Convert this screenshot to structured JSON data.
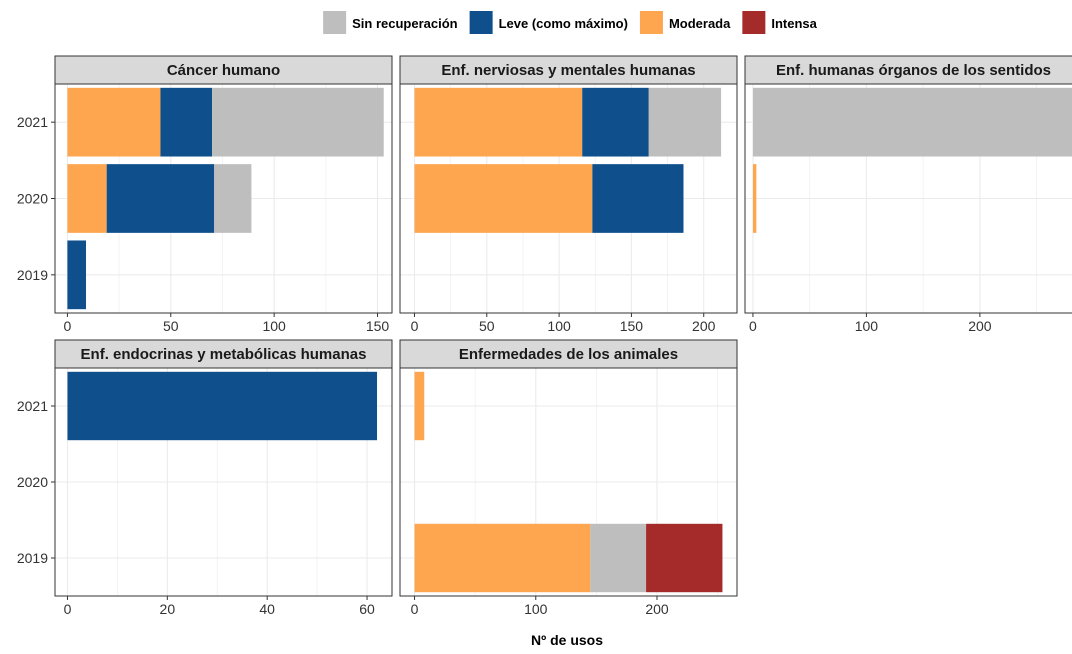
{
  "chart_data": {
    "type": "bar",
    "orientation": "horizontal",
    "stacked": true,
    "xlabel": "Nº de usos",
    "ylabel": "",
    "legend": {
      "placement": "top",
      "entries": [
        {
          "name": "Sin recuperación",
          "color": "#bebebe"
        },
        {
          "name": "Leve (como máximo)",
          "color": "#0f4f8c"
        },
        {
          "name": "Moderada",
          "color": "#fea54f"
        },
        {
          "name": "Intensa",
          "color": "#a52a2a"
        }
      ]
    },
    "categories": [
      "2019",
      "2020",
      "2021"
    ],
    "stack_order": [
      "Moderada",
      "Leve (como máximo)",
      "Sin recuperación",
      "Intensa"
    ],
    "stack_order_note": "",
    "grid": true,
    "facets": [
      {
        "title": "Cáncer humano",
        "xlim": [
          -6,
          157
        ],
        "xticks": [
          0,
          50,
          100,
          150
        ],
        "data": {
          "2021": {
            "Intensa": 0,
            "Moderada": 45,
            "Leve (como máximo)": 25,
            "Sin recuperación": 83
          },
          "2020": {
            "Intensa": 0,
            "Moderada": 19,
            "Leve (como máximo)": 52,
            "Sin recuperación": 18
          },
          "2019": {
            "Intensa": 0,
            "Moderada": 0,
            "Leve (como máximo)": 9,
            "Sin recuperación": 0
          }
        }
      },
      {
        "title": "Enf. nerviosas y mentales humanas",
        "xlim": [
          -10,
          223
        ],
        "xticks": [
          0,
          50,
          100,
          150,
          200
        ],
        "data": {
          "2021": {
            "Intensa": 0,
            "Moderada": 116,
            "Leve (como máximo)": 46,
            "Sin recuperación": 50
          },
          "2020": {
            "Intensa": 0,
            "Moderada": 123,
            "Leve (como máximo)": 63,
            "Sin recuperación": 0
          },
          "2019": {
            "Intensa": 0,
            "Moderada": 0,
            "Leve (como máximo)": 0,
            "Sin recuperación": 0
          }
        }
      },
      {
        "title": "Enf. humanas órganos de los sentidos",
        "xlim": [
          -7,
          290
        ],
        "xticks": [
          0,
          100,
          200
        ],
        "data": {
          "2021": {
            "Intensa": 0,
            "Moderada": 0,
            "Leve (como máximo)": 0,
            "Sin recuperación": 290
          },
          "2020": {
            "Intensa": 0,
            "Moderada": 3,
            "Leve (como máximo)": 0,
            "Sin recuperación": 0
          },
          "2019": {
            "Intensa": 0,
            "Moderada": 0,
            "Leve (como máximo)": 0,
            "Sin recuperación": 0
          }
        }
      },
      {
        "title": "Enf. endocrinas y metabólicas humanas",
        "xlim": [
          -2.5,
          65
        ],
        "xticks": [
          0,
          20,
          40,
          60
        ],
        "data": {
          "2021": {
            "Intensa": 0,
            "Moderada": 0,
            "Leve (como máximo)": 62,
            "Sin recuperación": 0
          },
          "2020": {
            "Intensa": 0,
            "Moderada": 0,
            "Leve (como máximo)": 0,
            "Sin recuperación": 0
          },
          "2019": {
            "Intensa": 0,
            "Moderada": 0,
            "Leve (como máximo)": 0,
            "Sin recuperación": 0
          }
        }
      },
      {
        "title": "Enfermedades de los animales",
        "xlim": [
          -12,
          266
        ],
        "xticks": [
          0,
          100,
          200
        ],
        "data": {
          "2021": {
            "Intensa": 0,
            "Moderada": 8,
            "Leve (como máximo)": 0,
            "Sin recuperación": 0
          },
          "2020": {
            "Intensa": 0,
            "Moderada": 0,
            "Leve (como máximo)": 0,
            "Sin recuperación": 0
          },
          "2019": {
            "Intensa": 63,
            "Moderada": 145,
            "Leve (como máximo)": 0,
            "Sin recuperación": 46
          }
        }
      }
    ]
  }
}
